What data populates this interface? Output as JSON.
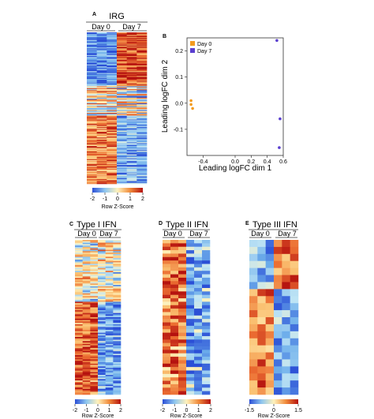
{
  "panel_labels": {
    "a": "A",
    "b": "B",
    "c": "C",
    "d": "D",
    "e": "E"
  },
  "colors": {
    "low": "#3b5bd6",
    "mid": "#fff2bc",
    "high": "#c41a16",
    "day0": "#f39b1f",
    "day7": "#5a3fd0"
  },
  "chart_data": [
    {
      "type": "heatmap",
      "panel": "A",
      "title": "IRG",
      "groups": [
        "Day 0",
        "Day 7"
      ],
      "columns_per_group": 3,
      "rows": 160,
      "pattern": "upper block low in Day 0 / high in Day 7; lower block high in Day 0 / low in Day 7",
      "colorbar": {
        "label": "Row Z-Score",
        "ticks": [
          "-2",
          "-1",
          "0",
          "1",
          "2"
        ],
        "range": [
          -2,
          2
        ]
      }
    },
    {
      "type": "scatter",
      "panel": "B",
      "xlabel": "Leading logFC dim 1",
      "ylabel": "Leading logFC dim 2",
      "xlim": [
        -0.6,
        0.6
      ],
      "ylim": [
        -0.2,
        0.25
      ],
      "xticks": [
        "-0.4",
        "0.0",
        "0.2",
        "0.4",
        "0.6"
      ],
      "yticks": [
        "-0.1",
        "0.0",
        "0.1",
        "0.2"
      ],
      "legend": "top-left",
      "series": [
        {
          "name": "Day 0",
          "points": [
            [
              -0.55,
              0.01
            ],
            [
              -0.53,
              -0.02
            ],
            [
              -0.55,
              -0.005
            ]
          ]
        },
        {
          "name": "Day 7",
          "points": [
            [
              0.52,
              0.24
            ],
            [
              0.56,
              -0.06
            ],
            [
              0.55,
              -0.17
            ]
          ]
        }
      ]
    },
    {
      "type": "heatmap",
      "panel": "C",
      "title": "Type I IFN",
      "groups": [
        "Day 0",
        "Day 7"
      ],
      "columns_per_group": 3,
      "rows": 110,
      "pattern": "mixed mid rows on top; Day 0 high and Day 7 low toward bottom",
      "colorbar": {
        "label": "Row Z-Score",
        "ticks": [
          "-2",
          "-1",
          "0",
          "1",
          "2"
        ],
        "range": [
          -2,
          2
        ]
      }
    },
    {
      "type": "heatmap",
      "panel": "D",
      "title": "Type II IFN",
      "groups": [
        "Day 0",
        "Day 7"
      ],
      "columns_per_group": 3,
      "rows": 45,
      "pattern": "Day 0 mostly high, Day 7 mostly low",
      "colorbar": {
        "label": "Row Z-Score",
        "ticks": [
          "-2",
          "-1",
          "0",
          "1",
          "2"
        ],
        "range": [
          -2,
          2
        ]
      }
    },
    {
      "type": "heatmap",
      "panel": "E",
      "title": "Type III IFN",
      "groups": [
        "Day 0",
        "Day 7"
      ],
      "columns_per_group": 3,
      "rows": 22,
      "pattern": "top rows low in Day 0 / high in Day 7; lower rows high in Day 0 / low in Day 7",
      "colorbar": {
        "label": "Row Z-Score",
        "ticks": [
          "-1.5",
          "0",
          "1.5"
        ],
        "range": [
          -1.5,
          1.5
        ]
      }
    }
  ]
}
